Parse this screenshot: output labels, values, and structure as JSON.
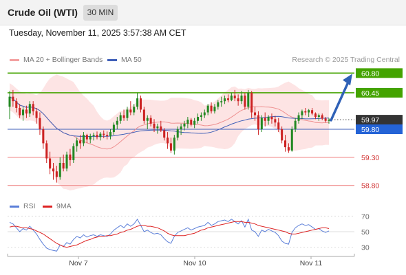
{
  "header": {
    "title": "Crude Oil (WTI)",
    "timeframe": "30 MIN"
  },
  "timestamp": "Tuesday, November 11, 2025 3:57:38 AM CET",
  "legend": {
    "bollinger_label": "MA 20 + Bollinger Bands",
    "ma50_label": "MA 50"
  },
  "credit": "Research © 2025 Trading Central",
  "rsi_legend": {
    "rsi_label": "RSI",
    "ma_label": "9MA"
  },
  "colors": {
    "candle_up": "#228822",
    "candle_down": "#cc2222",
    "resistance": "#44a300",
    "support": "#f08a8a",
    "ma50": "#3f5fb8",
    "ma20": "#ee9090",
    "band_fill": "#fde4e4",
    "rsi": "#5a7ed8",
    "rsi_ma": "#dd2222",
    "arrow": "#2f61b7",
    "price_tag": "#333333",
    "pivot_tag": "#2463d6"
  },
  "chart_data": [
    {
      "type": "candlestick",
      "title": "Crude Oil (WTI)",
      "timeframe": "30 MIN",
      "x_tick_labels": [
        "Nov 7",
        "Nov 10",
        "Nov 11"
      ],
      "ylim": [
        58.6,
        61.0
      ],
      "current_price": 59.97,
      "pivot": 59.8,
      "resistance_levels": [
        60.45,
        60.8
      ],
      "support_levels": [
        59.3,
        58.8
      ],
      "level_labels": [
        "60.80",
        "60.45",
        "59.97",
        "59.80",
        "59.30",
        "58.80"
      ],
      "projection": {
        "from": 59.96,
        "to": 60.8
      },
      "indicators": [
        "MA 20 + Bollinger Bands",
        "MA 50"
      ],
      "ohlc": [
        [
          60.2,
          60.48,
          59.98,
          60.38
        ],
        [
          60.38,
          60.5,
          60.2,
          60.3
        ],
        [
          60.3,
          60.35,
          60.1,
          60.18
        ],
        [
          60.18,
          60.25,
          60.0,
          60.05
        ],
        [
          60.05,
          60.2,
          59.95,
          60.15
        ],
        [
          60.15,
          60.22,
          60.0,
          60.08
        ],
        [
          60.08,
          60.3,
          60.02,
          60.25
        ],
        [
          60.25,
          60.3,
          60.05,
          60.12
        ],
        [
          60.12,
          60.18,
          59.9,
          60.0
        ],
        [
          60.0,
          60.1,
          59.7,
          59.8
        ],
        [
          59.8,
          59.85,
          59.45,
          59.55
        ],
        [
          59.55,
          59.6,
          59.2,
          59.28
        ],
        [
          59.28,
          59.4,
          59.0,
          59.1
        ],
        [
          59.1,
          59.2,
          58.9,
          59.05
        ],
        [
          59.05,
          59.15,
          58.85,
          58.95
        ],
        [
          58.95,
          59.3,
          58.9,
          59.2
        ],
        [
          59.2,
          59.35,
          59.05,
          59.1
        ],
        [
          59.1,
          59.4,
          59.05,
          59.35
        ],
        [
          59.35,
          59.45,
          59.15,
          59.25
        ],
        [
          59.25,
          59.55,
          59.2,
          59.5
        ],
        [
          59.5,
          59.65,
          59.4,
          59.6
        ],
        [
          59.6,
          59.7,
          59.45,
          59.55
        ],
        [
          59.55,
          59.75,
          59.5,
          59.7
        ],
        [
          59.7,
          59.72,
          59.55,
          59.62
        ],
        [
          59.62,
          59.72,
          59.55,
          59.68
        ],
        [
          59.68,
          59.74,
          59.6,
          59.7
        ],
        [
          59.7,
          59.76,
          59.62,
          59.66
        ],
        [
          59.66,
          59.75,
          59.6,
          59.72
        ],
        [
          59.72,
          59.78,
          59.64,
          59.7
        ],
        [
          59.7,
          59.76,
          59.62,
          59.68
        ],
        [
          59.68,
          59.8,
          59.62,
          59.75
        ],
        [
          59.75,
          59.92,
          59.7,
          59.88
        ],
        [
          59.88,
          60.02,
          59.8,
          59.95
        ],
        [
          59.95,
          60.1,
          59.9,
          60.05
        ],
        [
          60.05,
          60.15,
          59.95,
          60.0
        ],
        [
          60.0,
          60.2,
          59.95,
          60.15
        ],
        [
          60.15,
          60.3,
          60.05,
          60.1
        ],
        [
          60.1,
          60.25,
          60.05,
          60.2
        ],
        [
          60.2,
          60.45,
          60.15,
          60.35
        ],
        [
          60.35,
          60.4,
          60.1,
          60.15
        ],
        [
          60.15,
          60.2,
          59.9,
          59.95
        ],
        [
          59.95,
          60.05,
          59.8,
          60.0
        ],
        [
          60.0,
          60.05,
          59.85,
          59.9
        ],
        [
          59.9,
          59.98,
          59.75,
          59.82
        ],
        [
          59.82,
          59.9,
          59.72,
          59.85
        ],
        [
          59.85,
          59.95,
          59.75,
          59.78
        ],
        [
          59.78,
          59.82,
          59.6,
          59.65
        ],
        [
          59.65,
          59.75,
          59.45,
          59.55
        ],
        [
          59.55,
          59.65,
          59.38,
          59.42
        ],
        [
          59.42,
          59.7,
          59.35,
          59.65
        ],
        [
          59.65,
          59.85,
          59.6,
          59.8
        ],
        [
          59.8,
          59.9,
          59.7,
          59.85
        ],
        [
          59.85,
          59.95,
          59.78,
          59.9
        ],
        [
          59.9,
          60.02,
          59.82,
          59.97
        ],
        [
          59.97,
          60.0,
          59.85,
          59.88
        ],
        [
          59.88,
          60.0,
          59.82,
          59.95
        ],
        [
          59.95,
          60.08,
          59.9,
          60.02
        ],
        [
          60.02,
          60.1,
          59.95,
          60.05
        ],
        [
          60.05,
          60.15,
          60.0,
          60.1
        ],
        [
          60.1,
          60.25,
          60.05,
          60.22
        ],
        [
          60.22,
          60.28,
          60.08,
          60.12
        ],
        [
          60.12,
          60.25,
          60.08,
          60.2
        ],
        [
          60.2,
          60.32,
          60.15,
          60.28
        ],
        [
          60.28,
          60.38,
          60.2,
          60.3
        ],
        [
          60.3,
          60.4,
          60.25,
          60.35
        ],
        [
          60.35,
          60.42,
          60.28,
          60.32
        ],
        [
          60.32,
          60.45,
          60.3,
          60.4
        ],
        [
          60.4,
          60.5,
          60.3,
          60.35
        ],
        [
          60.35,
          60.42,
          60.22,
          60.3
        ],
        [
          60.3,
          60.48,
          60.25,
          60.4
        ],
        [
          60.4,
          60.45,
          60.15,
          60.2
        ],
        [
          60.2,
          60.5,
          60.15,
          60.45
        ],
        [
          60.45,
          60.48,
          60.0,
          60.1
        ],
        [
          60.1,
          60.2,
          59.95,
          60.05
        ],
        [
          60.05,
          60.12,
          59.7,
          59.8
        ],
        [
          59.8,
          60.05,
          59.75,
          60.0
        ],
        [
          60.0,
          60.1,
          59.85,
          59.95
        ],
        [
          59.95,
          60.05,
          59.88,
          60.02
        ],
        [
          60.02,
          60.08,
          59.9,
          59.98
        ],
        [
          59.98,
          60.04,
          59.85,
          59.92
        ],
        [
          59.92,
          60.0,
          59.75,
          59.8
        ],
        [
          59.8,
          59.85,
          59.55,
          59.6
        ],
        [
          59.6,
          59.7,
          59.4,
          59.48
        ],
        [
          59.48,
          59.55,
          59.38,
          59.42
        ],
        [
          59.42,
          59.85,
          59.4,
          59.8
        ],
        [
          59.8,
          60.0,
          59.75,
          59.95
        ],
        [
          59.95,
          60.1,
          59.9,
          60.05
        ],
        [
          60.05,
          60.15,
          59.98,
          60.12
        ],
        [
          60.12,
          60.18,
          60.05,
          60.1
        ],
        [
          60.1,
          60.16,
          60.02,
          60.14
        ],
        [
          60.14,
          60.18,
          60.05,
          60.08
        ],
        [
          60.08,
          60.1,
          59.98,
          60.02
        ],
        [
          60.02,
          60.08,
          59.95,
          60.05
        ],
        [
          60.05,
          60.08,
          59.96,
          59.99
        ],
        [
          59.99,
          60.02,
          59.92,
          59.95
        ],
        [
          59.95,
          60.0,
          59.9,
          59.97
        ]
      ]
    },
    {
      "type": "line",
      "title": "RSI",
      "y_tick_labels": [
        "70",
        "50",
        "30"
      ],
      "ylim": [
        20,
        80
      ],
      "series": [
        {
          "name": "RSI",
          "values": [
            62,
            60,
            55,
            50,
            54,
            52,
            57,
            52,
            47,
            40,
            34,
            29,
            27,
            26,
            25,
            33,
            31,
            36,
            34,
            40,
            44,
            42,
            46,
            43,
            45,
            46,
            44,
            46,
            45,
            44,
            47,
            52,
            55,
            58,
            55,
            60,
            57,
            60,
            66,
            58,
            50,
            52,
            49,
            47,
            48,
            46,
            41,
            37,
            35,
            44,
            49,
            51,
            53,
            55,
            52,
            54,
            56,
            57,
            58,
            62,
            58,
            60,
            63,
            64,
            65,
            63,
            66,
            63,
            60,
            64,
            56,
            66,
            52,
            50,
            44,
            52,
            50,
            53,
            51,
            49,
            45,
            38,
            35,
            34,
            49,
            55,
            58,
            60,
            58,
            59,
            56,
            53,
            54,
            51,
            49,
            51
          ]
        },
        {
          "name": "9MA",
          "values": [
            56,
            57,
            57,
            56,
            55,
            55,
            54,
            53,
            51,
            49,
            47,
            44,
            41,
            38,
            35,
            33,
            31,
            30,
            31,
            32,
            33,
            35,
            37,
            39,
            40,
            42,
            43,
            44,
            44,
            45,
            45,
            46,
            47,
            49,
            50,
            52,
            53,
            55,
            57,
            58,
            58,
            57,
            57,
            56,
            55,
            53,
            51,
            48,
            46,
            45,
            45,
            45,
            45,
            46,
            47,
            48,
            50,
            52,
            53,
            55,
            56,
            57,
            58,
            59,
            60,
            61,
            62,
            63,
            63,
            63,
            62,
            62,
            61,
            60,
            58,
            57,
            56,
            55,
            54,
            53,
            52,
            51,
            50,
            48,
            47,
            47,
            48,
            49,
            50,
            51,
            52,
            53,
            54,
            55,
            55,
            54
          ]
        }
      ]
    }
  ]
}
